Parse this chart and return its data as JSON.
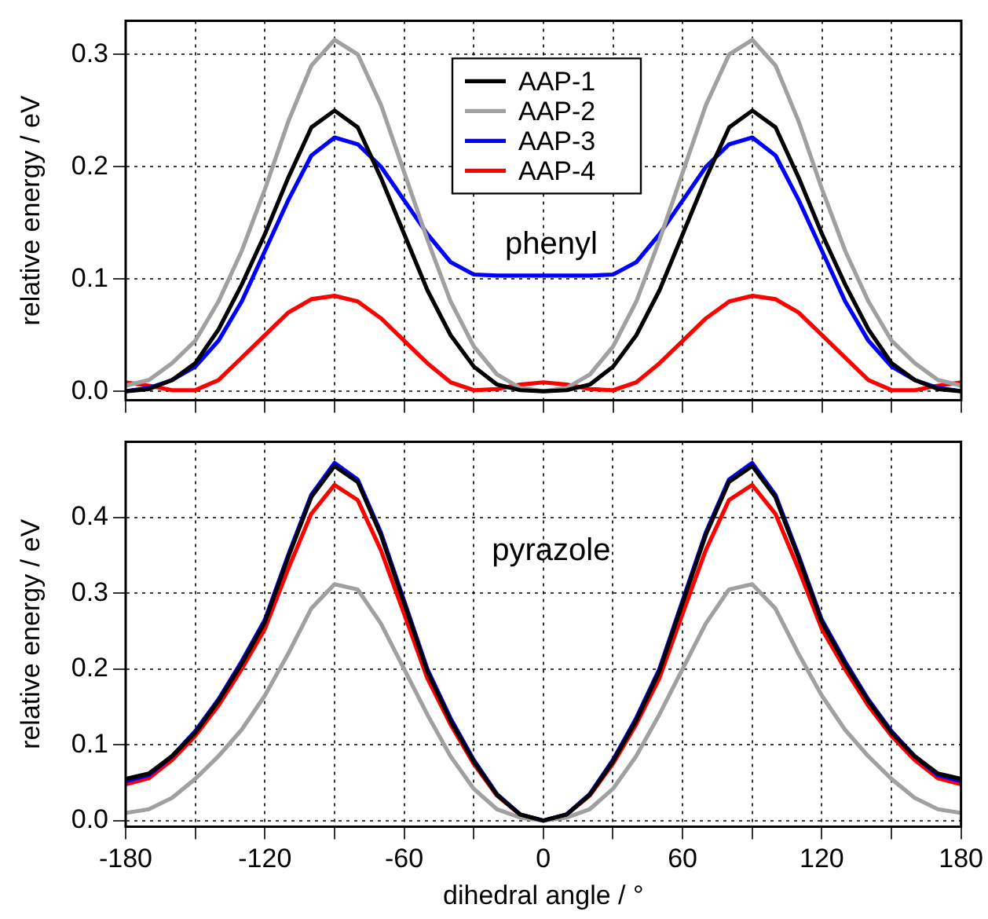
{
  "chart_data": [
    {
      "type": "line",
      "legend": "top",
      "grid": true,
      "line_style": "solid",
      "marker": "none",
      "tick_labels": "y",
      "ylabel": "relative energy / eV",
      "annotations": [
        "phenyl"
      ],
      "x": [
        -180,
        -170,
        -160,
        -150,
        -140,
        -130,
        -120,
        -110,
        -100,
        -90,
        -80,
        -70,
        -60,
        -50,
        -40,
        -30,
        -20,
        -10,
        0,
        10,
        20,
        30,
        40,
        50,
        60,
        70,
        80,
        90,
        100,
        110,
        120,
        130,
        140,
        150,
        160,
        170,
        180
      ],
      "xlim": [
        -180,
        180
      ],
      "xticks": [
        -180,
        {
          "value": -150,
          "label": null
        },
        -120,
        {
          "value": -90,
          "label": null
        },
        -60,
        {
          "value": -30,
          "label": null
        },
        0,
        {
          "value": 30,
          "label": null
        },
        60,
        {
          "value": 90,
          "label": null
        },
        120,
        {
          "value": 150,
          "label": null
        },
        180
      ],
      "ylim": [
        -0.008,
        0.33
      ],
      "yticks": [
        {
          "value": 0,
          "label": "0.0"
        },
        0.1,
        0.2,
        0.3
      ],
      "series": [
        {
          "name": "AAP-1",
          "color": "#000000",
          "values": [
            0,
            0.002,
            0.01,
            0.025,
            0.055,
            0.095,
            0.14,
            0.19,
            0.235,
            0.25,
            0.235,
            0.19,
            0.14,
            0.09,
            0.05,
            0.022,
            0.006,
            0.001,
            0,
            0.001,
            0.006,
            0.022,
            0.05,
            0.09,
            0.14,
            0.19,
            0.235,
            0.25,
            0.235,
            0.19,
            0.14,
            0.095,
            0.055,
            0.025,
            0.01,
            0.002,
            0
          ]
        },
        {
          "name": "AAP-2",
          "color": "#a0a0a0",
          "values": [
            0.005,
            0.01,
            0.025,
            0.045,
            0.08,
            0.125,
            0.18,
            0.24,
            0.29,
            0.313,
            0.3,
            0.255,
            0.195,
            0.135,
            0.08,
            0.04,
            0.015,
            0.003,
            0,
            0.003,
            0.015,
            0.04,
            0.08,
            0.135,
            0.195,
            0.255,
            0.3,
            0.313,
            0.29,
            0.24,
            0.18,
            0.125,
            0.08,
            0.045,
            0.025,
            0.01,
            0.005
          ]
        },
        {
          "name": "AAP-3",
          "color": "#0000ff",
          "values": [
            0,
            0.003,
            0.01,
            0.022,
            0.045,
            0.08,
            0.125,
            0.17,
            0.21,
            0.226,
            0.22,
            0.2,
            0.17,
            0.14,
            0.115,
            0.104,
            0.103,
            0.103,
            0.103,
            0.103,
            0.103,
            0.104,
            0.115,
            0.14,
            0.17,
            0.2,
            0.22,
            0.226,
            0.21,
            0.17,
            0.125,
            0.08,
            0.045,
            0.022,
            0.01,
            0.003,
            0
          ]
        },
        {
          "name": "AAP-4",
          "color": "#ff0000",
          "values": [
            0.008,
            0.005,
            0.001,
            0.001,
            0.01,
            0.03,
            0.05,
            0.07,
            0.082,
            0.085,
            0.08,
            0.065,
            0.045,
            0.025,
            0.008,
            0.001,
            0.002,
            0.006,
            0.008,
            0.006,
            0.002,
            0.001,
            0.008,
            0.025,
            0.045,
            0.065,
            0.08,
            0.085,
            0.082,
            0.07,
            0.05,
            0.03,
            0.01,
            0.001,
            0.001,
            0.005,
            0.008
          ]
        }
      ]
    },
    {
      "type": "line",
      "legend": false,
      "grid": true,
      "line_style": "solid",
      "marker": "none",
      "xlabel": "dihedral angle / °",
      "ylabel": "relative energy / eV",
      "annotations": [
        "pyrazole"
      ],
      "x": [
        -180,
        -170,
        -160,
        -150,
        -140,
        -130,
        -120,
        -110,
        -100,
        -90,
        -80,
        -70,
        -60,
        -50,
        -40,
        -30,
        -20,
        -10,
        0,
        10,
        20,
        30,
        40,
        50,
        60,
        70,
        80,
        90,
        100,
        110,
        120,
        130,
        140,
        150,
        160,
        170,
        180
      ],
      "xlim": [
        -180,
        180
      ],
      "xticks": [
        -180,
        {
          "value": -150,
          "label": null
        },
        -120,
        {
          "value": -90,
          "label": null
        },
        -60,
        {
          "value": -30,
          "label": null
        },
        0,
        {
          "value": 30,
          "label": null
        },
        60,
        {
          "value": 90,
          "label": null
        },
        120,
        {
          "value": 150,
          "label": null
        },
        180
      ],
      "ylim": [
        -0.008,
        0.5
      ],
      "yticks": [
        {
          "value": 0,
          "label": "0.0"
        },
        0.1,
        0.2,
        0.3,
        0.4
      ],
      "series": [
        {
          "color": "#000000",
          "values": [
            0.055,
            0.062,
            0.085,
            0.116,
            0.158,
            0.207,
            0.262,
            0.347,
            0.427,
            0.468,
            0.447,
            0.377,
            0.287,
            0.197,
            0.132,
            0.078,
            0.034,
            0.008,
            0,
            0.008,
            0.034,
            0.078,
            0.132,
            0.197,
            0.287,
            0.377,
            0.447,
            0.468,
            0.427,
            0.347,
            0.262,
            0.207,
            0.158,
            0.116,
            0.085,
            0.062,
            0.055
          ]
        },
        {
          "color": "#a0a0a0",
          "values": [
            0.01,
            0.015,
            0.03,
            0.055,
            0.085,
            0.12,
            0.165,
            0.22,
            0.28,
            0.312,
            0.305,
            0.26,
            0.2,
            0.14,
            0.085,
            0.042,
            0.015,
            0.004,
            0,
            0.004,
            0.015,
            0.042,
            0.085,
            0.14,
            0.2,
            0.26,
            0.305,
            0.312,
            0.28,
            0.22,
            0.165,
            0.12,
            0.085,
            0.055,
            0.03,
            0.015,
            0.01
          ]
        },
        {
          "color": "#0000ff",
          "values": [
            0.052,
            0.06,
            0.085,
            0.118,
            0.16,
            0.21,
            0.265,
            0.35,
            0.43,
            0.472,
            0.45,
            0.38,
            0.29,
            0.2,
            0.135,
            0.08,
            0.035,
            0.008,
            0,
            0.008,
            0.035,
            0.08,
            0.135,
            0.2,
            0.29,
            0.38,
            0.45,
            0.472,
            0.43,
            0.35,
            0.265,
            0.21,
            0.16,
            0.118,
            0.085,
            0.06,
            0.052
          ]
        },
        {
          "color": "#ff0000",
          "values": [
            0.048,
            0.056,
            0.08,
            0.112,
            0.152,
            0.2,
            0.253,
            0.332,
            0.405,
            0.443,
            0.423,
            0.357,
            0.273,
            0.188,
            0.127,
            0.075,
            0.033,
            0.008,
            0,
            0.008,
            0.033,
            0.075,
            0.127,
            0.188,
            0.273,
            0.357,
            0.423,
            0.443,
            0.405,
            0.332,
            0.253,
            0.2,
            0.152,
            0.112,
            0.08,
            0.056,
            0.048
          ]
        }
      ]
    }
  ]
}
